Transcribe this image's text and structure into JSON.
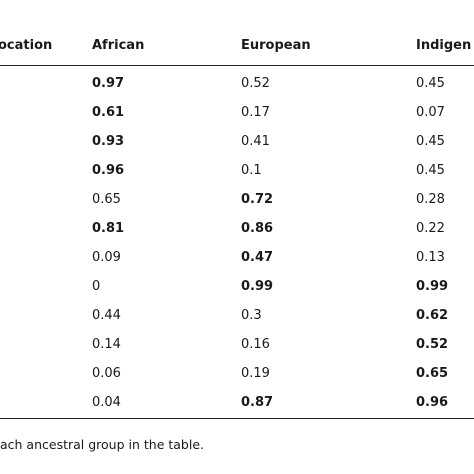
{
  "table": {
    "headers": [
      "ocation",
      "African",
      "European",
      "Indigen"
    ],
    "rows": [
      [
        {
          "v": "0.97",
          "b": true
        },
        {
          "v": "0.52",
          "b": false
        },
        {
          "v": "0.45",
          "b": false
        }
      ],
      [
        {
          "v": "0.61",
          "b": true
        },
        {
          "v": "0.17",
          "b": false
        },
        {
          "v": "0.07",
          "b": false
        }
      ],
      [
        {
          "v": "0.93",
          "b": true
        },
        {
          "v": "0.41",
          "b": false
        },
        {
          "v": "0.45",
          "b": false
        }
      ],
      [
        {
          "v": "0.96",
          "b": true
        },
        {
          "v": "0.1",
          "b": false
        },
        {
          "v": "0.45",
          "b": false
        }
      ],
      [
        {
          "v": "0.65",
          "b": false
        },
        {
          "v": "0.72",
          "b": true
        },
        {
          "v": "0.28",
          "b": false
        }
      ],
      [
        {
          "v": "0.81",
          "b": true
        },
        {
          "v": "0.86",
          "b": true
        },
        {
          "v": "0.22",
          "b": false
        }
      ],
      [
        {
          "v": "0.09",
          "b": false
        },
        {
          "v": "0.47",
          "b": true
        },
        {
          "v": "0.13",
          "b": false
        }
      ],
      [
        {
          "v": "0",
          "b": false
        },
        {
          "v": "0.99",
          "b": true
        },
        {
          "v": "0.99",
          "b": true
        }
      ],
      [
        {
          "v": "0.44",
          "b": false
        },
        {
          "v": "0.3",
          "b": false
        },
        {
          "v": "0.62",
          "b": true
        }
      ],
      [
        {
          "v": "0.14",
          "b": false
        },
        {
          "v": "0.16",
          "b": false
        },
        {
          "v": "0.52",
          "b": true
        }
      ],
      [
        {
          "v": "0.06",
          "b": false
        },
        {
          "v": "0.19",
          "b": false
        },
        {
          "v": "0.65",
          "b": true
        }
      ],
      [
        {
          "v": "0.04",
          "b": false
        },
        {
          "v": "0.87",
          "b": true
        },
        {
          "v": "0.96",
          "b": true
        }
      ]
    ]
  },
  "footnote": "ach ancestral group in the table."
}
